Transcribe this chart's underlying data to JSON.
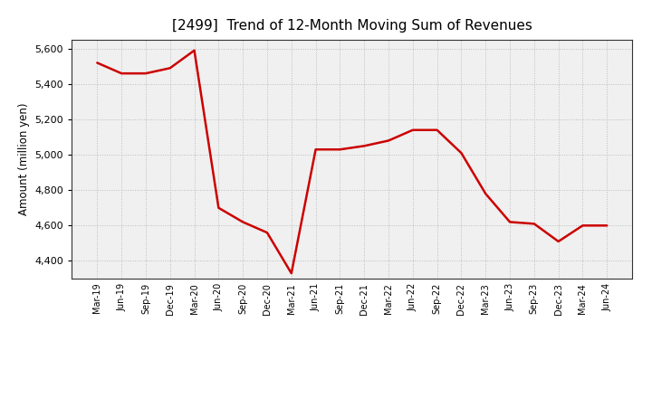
{
  "title": "[2499]  Trend of 12-Month Moving Sum of Revenues",
  "ylabel": "Amount (million yen)",
  "line_color": "#cc0000",
  "background_color": "#ffffff",
  "plot_bg_color": "#f0f0f0",
  "grid_color": "#bbbbbb",
  "ylim": [
    4300,
    5650
  ],
  "yticks": [
    4400,
    4600,
    4800,
    5000,
    5200,
    5400,
    5600
  ],
  "x_labels": [
    "Mar-19",
    "Jun-19",
    "Sep-19",
    "Dec-19",
    "Mar-20",
    "Jun-20",
    "Sep-20",
    "Dec-20",
    "Mar-21",
    "Jun-21",
    "Sep-21",
    "Dec-21",
    "Mar-22",
    "Jun-22",
    "Sep-22",
    "Dec-22",
    "Mar-23",
    "Jun-23",
    "Sep-23",
    "Dec-23",
    "Mar-24",
    "Jun-24"
  ],
  "values": [
    5520,
    5460,
    5460,
    5490,
    5590,
    4700,
    4620,
    4560,
    4330,
    5030,
    5030,
    5050,
    5080,
    5140,
    5140,
    5010,
    4780,
    4620,
    4610,
    4510,
    4600,
    4600
  ]
}
